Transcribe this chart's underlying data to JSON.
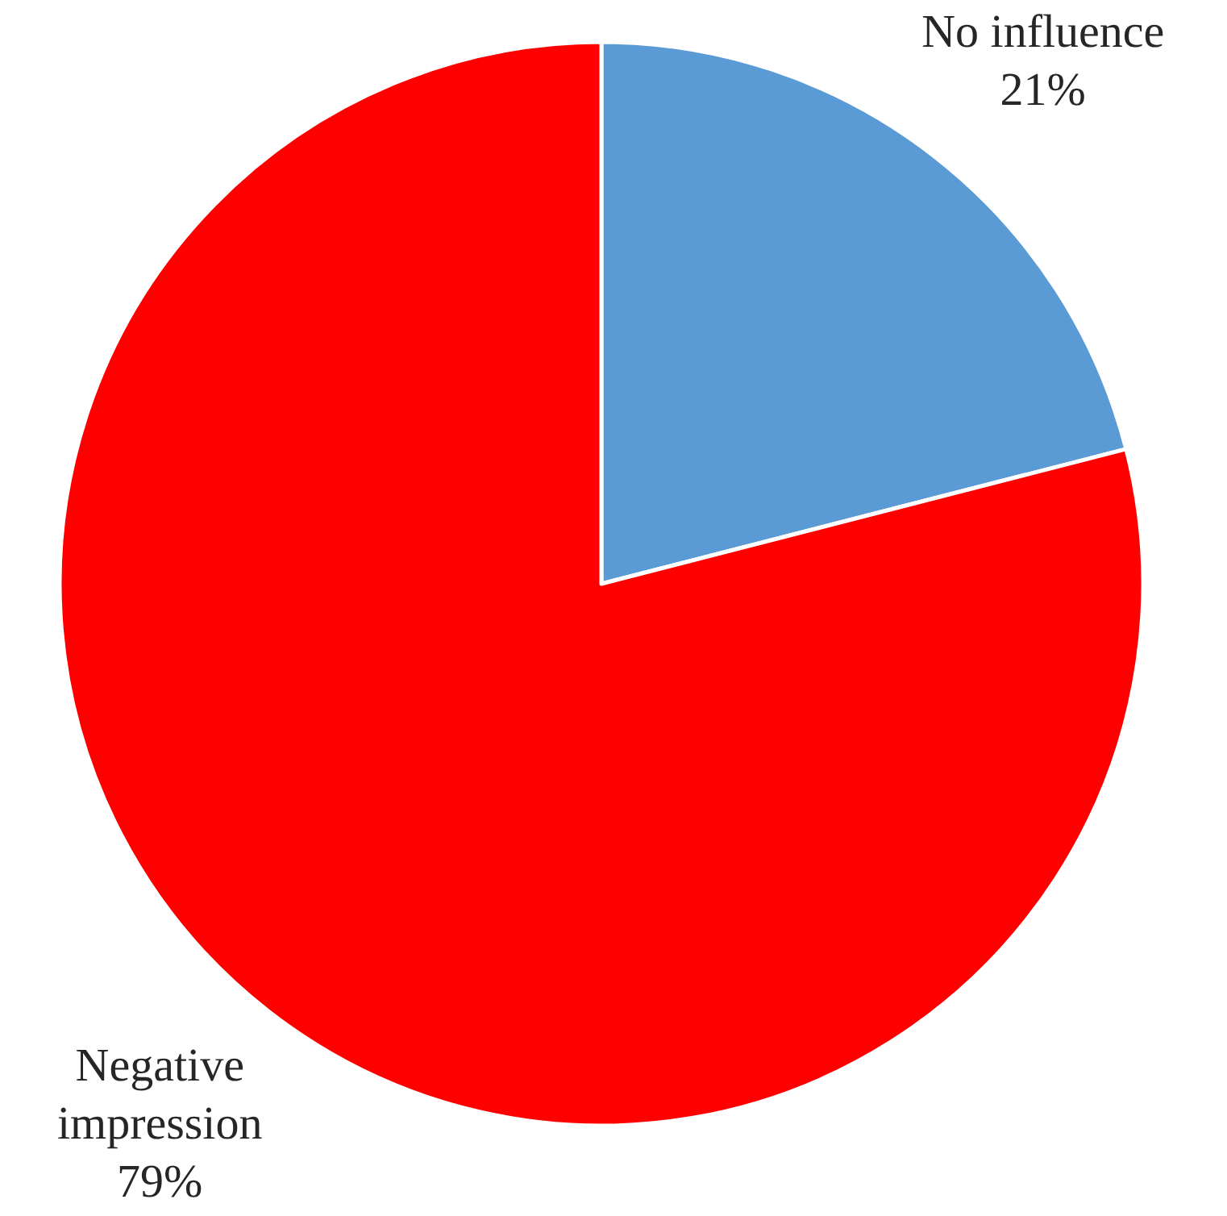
{
  "chart_data": {
    "type": "pie",
    "categories": [
      "No influence",
      "Negative impression"
    ],
    "values": [
      21,
      79
    ],
    "colors": [
      "#5b9bd5",
      "#ff0000"
    ],
    "value_labels": [
      "21%",
      "79%"
    ]
  }
}
